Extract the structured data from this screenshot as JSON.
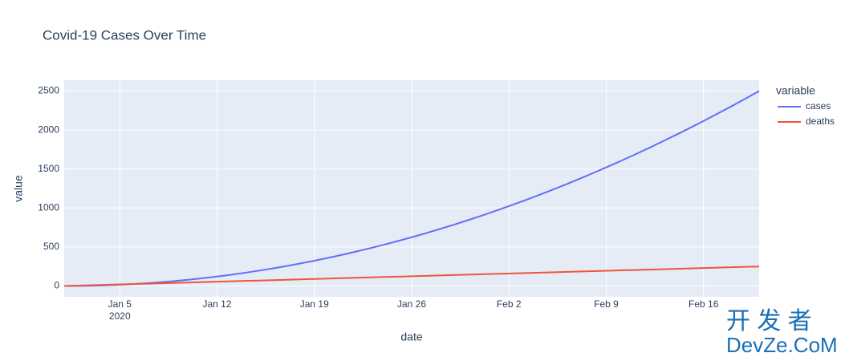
{
  "chart_data": {
    "type": "line",
    "title": "Covid-19 Cases Over Time",
    "x_label": "date",
    "y_label": "value",
    "legend_title": "variable",
    "x": [
      "2020-01-01",
      "2020-01-02",
      "2020-01-03",
      "2020-01-04",
      "2020-01-05",
      "2020-01-06",
      "2020-01-07",
      "2020-01-08",
      "2020-01-09",
      "2020-01-10",
      "2020-01-11",
      "2020-01-12",
      "2020-01-13",
      "2020-01-14",
      "2020-01-15",
      "2020-01-16",
      "2020-01-17",
      "2020-01-18",
      "2020-01-19",
      "2020-01-20",
      "2020-01-21",
      "2020-01-22",
      "2020-01-23",
      "2020-01-24",
      "2020-01-25",
      "2020-01-26",
      "2020-01-27",
      "2020-01-28",
      "2020-01-29",
      "2020-01-30",
      "2020-01-31",
      "2020-02-01",
      "2020-02-02",
      "2020-02-03",
      "2020-02-04",
      "2020-02-05",
      "2020-02-06",
      "2020-02-07",
      "2020-02-08",
      "2020-02-09",
      "2020-02-10",
      "2020-02-11",
      "2020-02-12",
      "2020-02-13",
      "2020-02-14",
      "2020-02-15",
      "2020-02-16",
      "2020-02-17",
      "2020-02-18",
      "2020-02-19",
      "2020-02-20"
    ],
    "series": [
      {
        "name": "cases",
        "color": "#636efa",
        "values": [
          0,
          1,
          4,
          9,
          16,
          25,
          36,
          49,
          64,
          81,
          100,
          121,
          144,
          169,
          196,
          225,
          256,
          289,
          324,
          361,
          400,
          441,
          484,
          529,
          576,
          625,
          676,
          729,
          784,
          841,
          900,
          961,
          1024,
          1089,
          1156,
          1225,
          1296,
          1369,
          1444,
          1521,
          1600,
          1681,
          1764,
          1849,
          1936,
          2025,
          2116,
          2209,
          2304,
          2401,
          2500
        ]
      },
      {
        "name": "deaths",
        "color": "#ef553b",
        "values": [
          0,
          5,
          10,
          15,
          20,
          25,
          30,
          35,
          40,
          45,
          50,
          55,
          60,
          65,
          70,
          75,
          80,
          85,
          90,
          95,
          100,
          105,
          110,
          115,
          120,
          125,
          130,
          135,
          140,
          145,
          150,
          155,
          160,
          165,
          170,
          175,
          180,
          185,
          190,
          195,
          200,
          205,
          210,
          215,
          220,
          225,
          230,
          235,
          240,
          245,
          250
        ]
      }
    ],
    "xlim": [
      "2020-01-01",
      "2020-02-20"
    ],
    "xticks": [
      {
        "value": "2020-01-05",
        "label": "Jan 5\n2020"
      },
      {
        "value": "2020-01-12",
        "label": "Jan 12"
      },
      {
        "value": "2020-01-19",
        "label": "Jan 19"
      },
      {
        "value": "2020-01-26",
        "label": "Jan 26"
      },
      {
        "value": "2020-02-02",
        "label": "Feb 2"
      },
      {
        "value": "2020-02-09",
        "label": "Feb 9"
      },
      {
        "value": "2020-02-16",
        "label": "Feb 16"
      }
    ],
    "ylim": [
      -139,
      2639
    ],
    "yticks": [
      0,
      500,
      1000,
      1500,
      2000,
      2500
    ],
    "grid": true
  },
  "watermark": {
    "brand": "开 发 者",
    "site": "DevZe.CoM"
  }
}
